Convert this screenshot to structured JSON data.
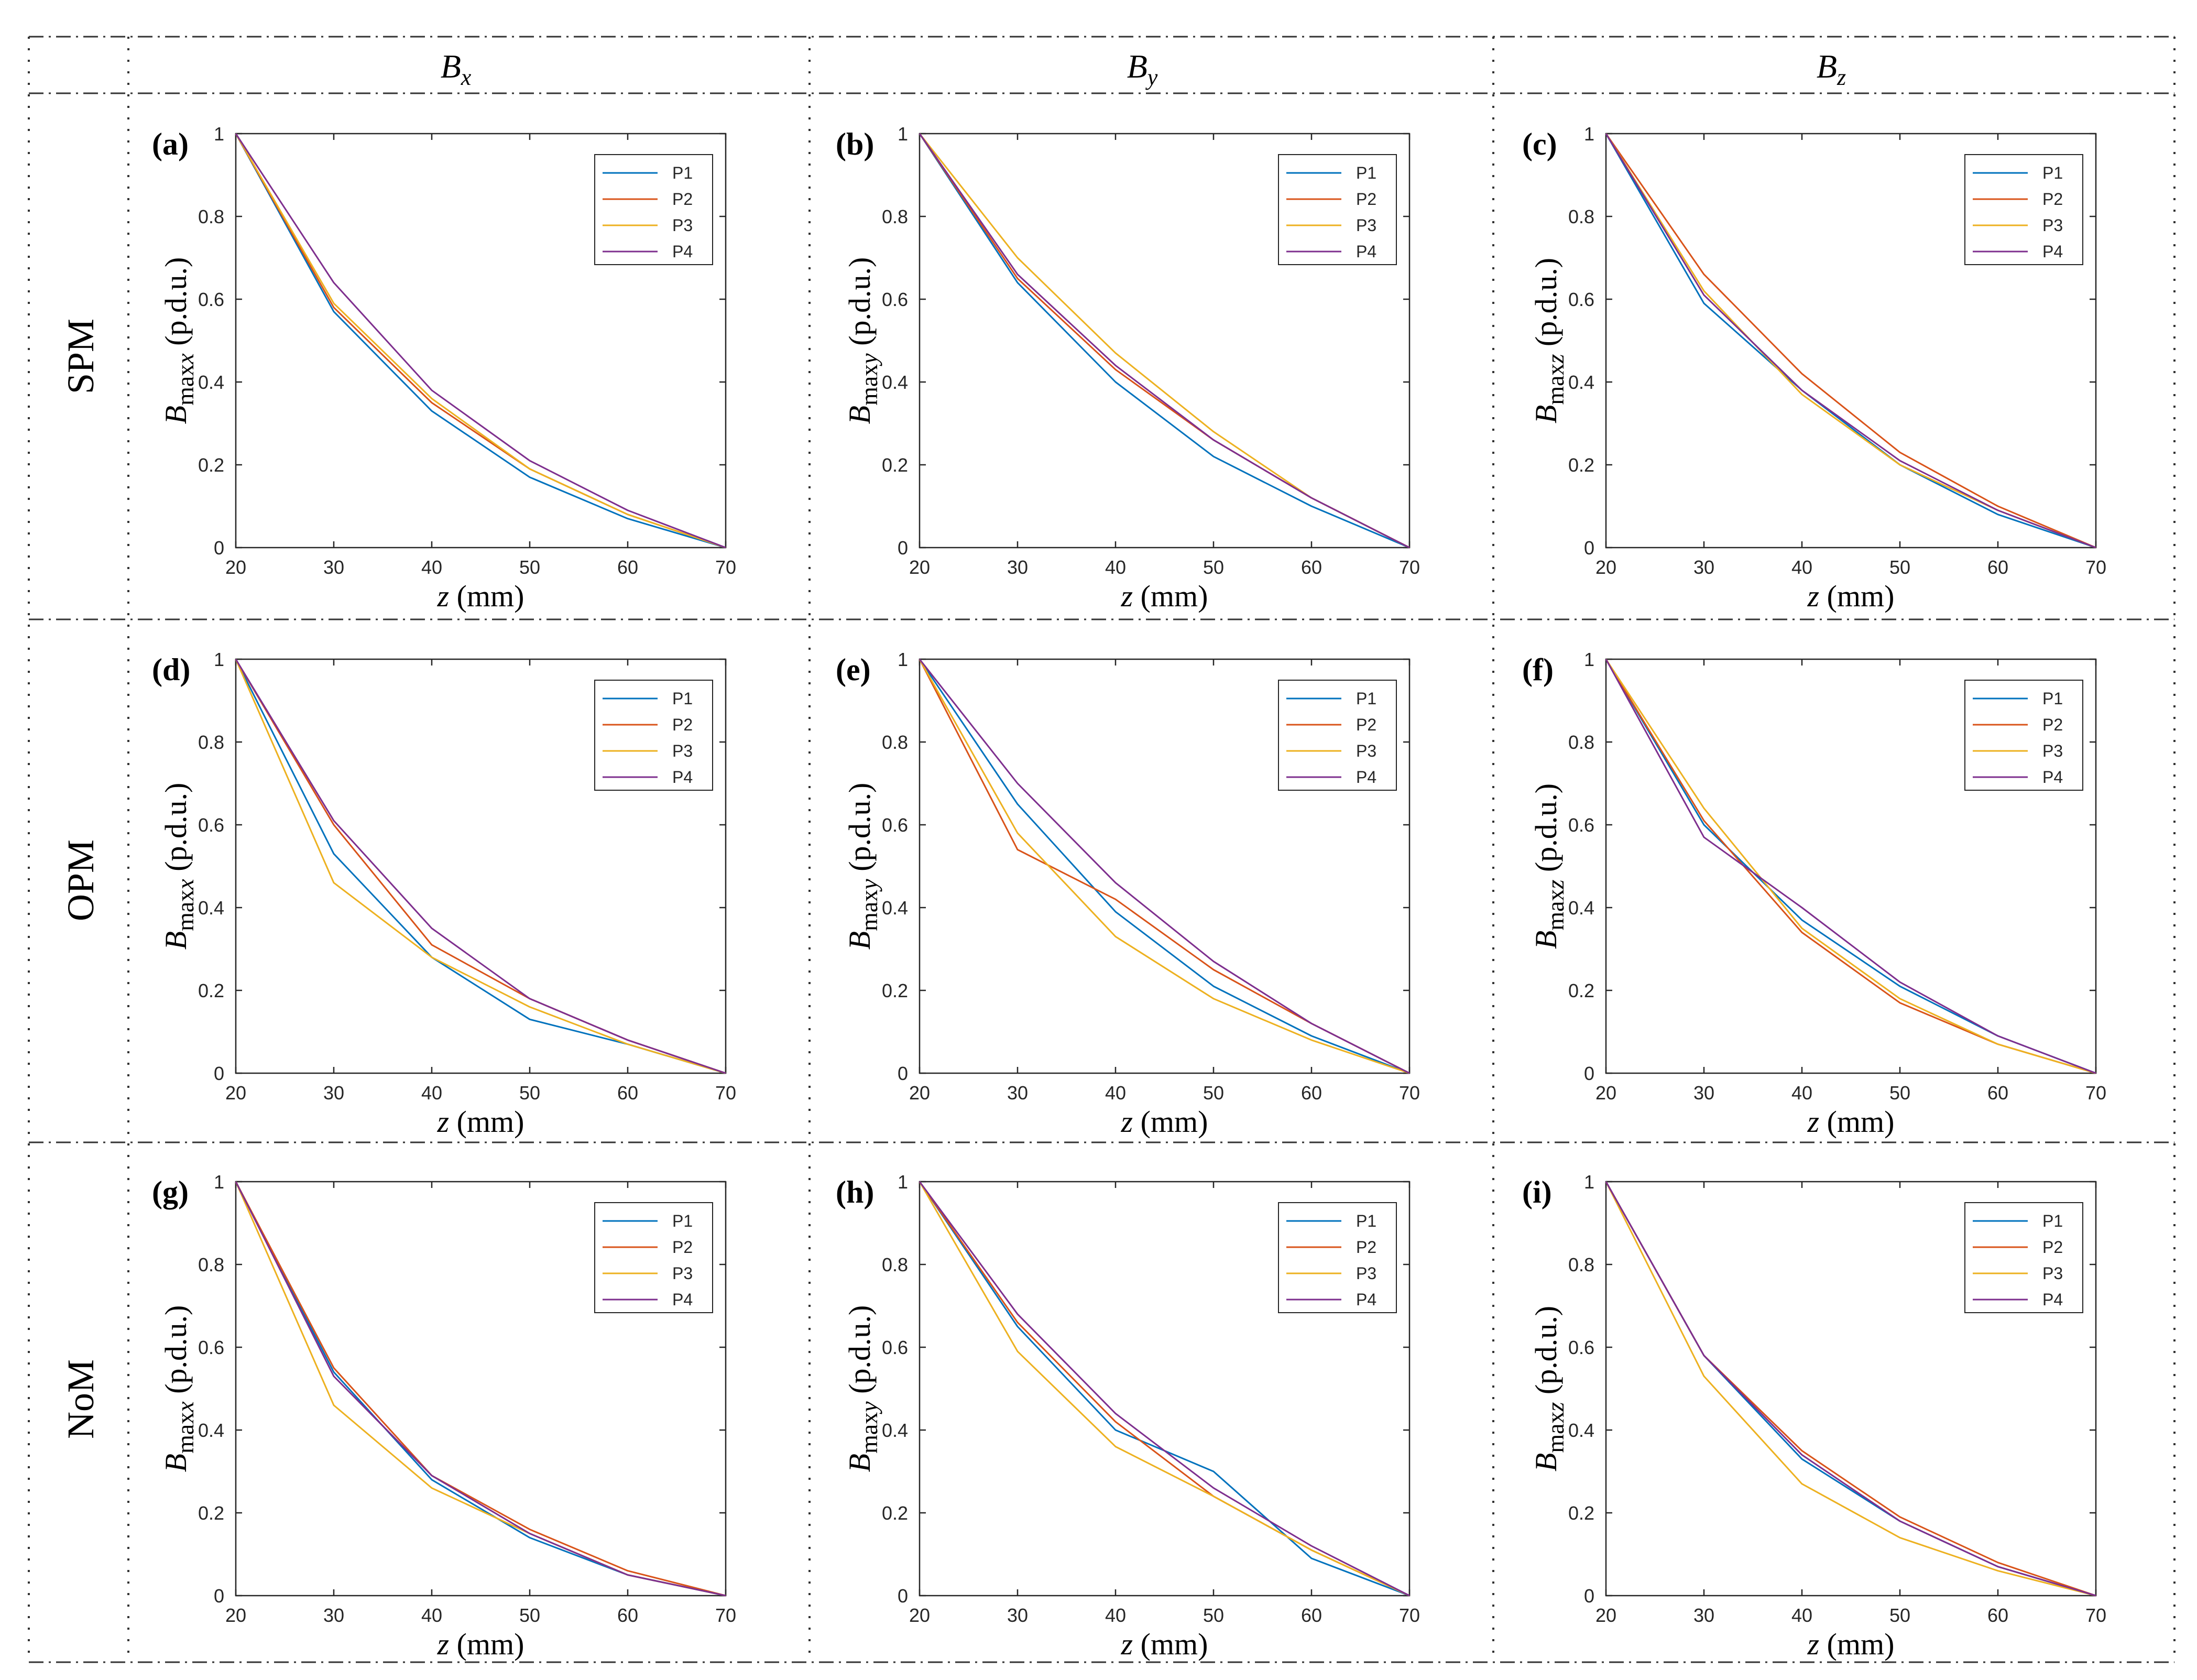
{
  "columns": [
    "B",
    "B",
    "B"
  ],
  "column_subscripts": [
    "x",
    "y",
    "z"
  ],
  "rows": [
    "SPM",
    "OPM",
    "NoM"
  ],
  "chart_data": [
    {
      "id": "a",
      "panel_label": "(a)",
      "type": "line",
      "xlabel_var": "z",
      "xlabel_unit": "(mm)",
      "ylabel_main": "B",
      "ylabel_sub": "max",
      "ylabel_comp": "x",
      "ylabel_unit": "(p.d.u.)",
      "x": [
        20,
        30,
        40,
        50,
        60,
        70
      ],
      "xlim": [
        20,
        70
      ],
      "ylim": [
        0,
        1
      ],
      "xticks": [
        "20",
        "30",
        "40",
        "50",
        "60",
        "70"
      ],
      "yticks": [
        "0",
        "0.2",
        "0.4",
        "0.6",
        "0.8",
        "1"
      ],
      "series": [
        {
          "name": "P1",
          "color": "#0072BD",
          "values": [
            1,
            0.57,
            0.33,
            0.17,
            0.07,
            0
          ]
        },
        {
          "name": "P2",
          "color": "#D95319",
          "values": [
            1,
            0.58,
            0.35,
            0.19,
            0.08,
            0
          ]
        },
        {
          "name": "P3",
          "color": "#EDB120",
          "values": [
            1,
            0.59,
            0.36,
            0.19,
            0.08,
            0
          ]
        },
        {
          "name": "P4",
          "color": "#7E2F8E",
          "values": [
            1,
            0.64,
            0.38,
            0.21,
            0.09,
            0
          ]
        }
      ]
    },
    {
      "id": "b",
      "panel_label": "(b)",
      "type": "line",
      "xlabel_var": "z",
      "xlabel_unit": "(mm)",
      "ylabel_main": "B",
      "ylabel_sub": "max",
      "ylabel_comp": "y",
      "ylabel_unit": "(p.d.u.)",
      "x": [
        20,
        30,
        40,
        50,
        60,
        70
      ],
      "xlim": [
        20,
        70
      ],
      "ylim": [
        0,
        1
      ],
      "xticks": [
        "20",
        "30",
        "40",
        "50",
        "60",
        "70"
      ],
      "yticks": [
        "0",
        "0.2",
        "0.4",
        "0.6",
        "0.8",
        "1"
      ],
      "series": [
        {
          "name": "P1",
          "color": "#0072BD",
          "values": [
            1,
            0.64,
            0.4,
            0.22,
            0.1,
            0
          ]
        },
        {
          "name": "P2",
          "color": "#D95319",
          "values": [
            1,
            0.65,
            0.43,
            0.26,
            0.12,
            0
          ]
        },
        {
          "name": "P3",
          "color": "#EDB120",
          "values": [
            1,
            0.7,
            0.47,
            0.28,
            0.12,
            0
          ]
        },
        {
          "name": "P4",
          "color": "#7E2F8E",
          "values": [
            1,
            0.66,
            0.44,
            0.26,
            0.12,
            0
          ]
        }
      ]
    },
    {
      "id": "c",
      "panel_label": "(c)",
      "type": "line",
      "xlabel_var": "z",
      "xlabel_unit": "(mm)",
      "ylabel_main": "B",
      "ylabel_sub": "max",
      "ylabel_comp": "z",
      "ylabel_unit": "(p.d.u.)",
      "x": [
        20,
        30,
        40,
        50,
        60,
        70
      ],
      "xlim": [
        20,
        70
      ],
      "ylim": [
        0,
        1
      ],
      "xticks": [
        "20",
        "30",
        "40",
        "50",
        "60",
        "70"
      ],
      "yticks": [
        "0",
        "0.2",
        "0.4",
        "0.6",
        "0.8",
        "1"
      ],
      "series": [
        {
          "name": "P1",
          "color": "#0072BD",
          "values": [
            1,
            0.59,
            0.38,
            0.2,
            0.08,
            0
          ]
        },
        {
          "name": "P2",
          "color": "#D95319",
          "values": [
            1,
            0.66,
            0.42,
            0.23,
            0.1,
            0
          ]
        },
        {
          "name": "P3",
          "color": "#EDB120",
          "values": [
            1,
            0.62,
            0.37,
            0.2,
            0.09,
            0
          ]
        },
        {
          "name": "P4",
          "color": "#7E2F8E",
          "values": [
            1,
            0.61,
            0.38,
            0.21,
            0.09,
            0
          ]
        }
      ]
    },
    {
      "id": "d",
      "panel_label": "(d)",
      "type": "line",
      "xlabel_var": "z",
      "xlabel_unit": "(mm)",
      "ylabel_main": "B",
      "ylabel_sub": "max",
      "ylabel_comp": "x",
      "ylabel_unit": "(p.d.u.)",
      "x": [
        20,
        30,
        40,
        50,
        60,
        70
      ],
      "xlim": [
        20,
        70
      ],
      "ylim": [
        0,
        1
      ],
      "xticks": [
        "20",
        "30",
        "40",
        "50",
        "60",
        "70"
      ],
      "yticks": [
        "0",
        "0.2",
        "0.4",
        "0.6",
        "0.8",
        "1"
      ],
      "series": [
        {
          "name": "P1",
          "color": "#0072BD",
          "values": [
            1,
            0.53,
            0.28,
            0.13,
            0.07,
            0
          ]
        },
        {
          "name": "P2",
          "color": "#D95319",
          "values": [
            1,
            0.6,
            0.31,
            0.18,
            0.08,
            0
          ]
        },
        {
          "name": "P3",
          "color": "#EDB120",
          "values": [
            1,
            0.46,
            0.28,
            0.16,
            0.07,
            0
          ]
        },
        {
          "name": "P4",
          "color": "#7E2F8E",
          "values": [
            1,
            0.61,
            0.35,
            0.18,
            0.08,
            0
          ]
        }
      ]
    },
    {
      "id": "e",
      "panel_label": "(e)",
      "type": "line",
      "xlabel_var": "z",
      "xlabel_unit": "(mm)",
      "ylabel_main": "B",
      "ylabel_sub": "max",
      "ylabel_comp": "y",
      "ylabel_unit": "(p.d.u.)",
      "x": [
        20,
        30,
        40,
        50,
        60,
        70
      ],
      "xlim": [
        20,
        70
      ],
      "ylim": [
        0,
        1
      ],
      "xticks": [
        "20",
        "30",
        "40",
        "50",
        "60",
        "70"
      ],
      "yticks": [
        "0",
        "0.2",
        "0.4",
        "0.6",
        "0.8",
        "1"
      ],
      "series": [
        {
          "name": "P1",
          "color": "#0072BD",
          "values": [
            1,
            0.65,
            0.39,
            0.21,
            0.09,
            0
          ]
        },
        {
          "name": "P2",
          "color": "#D95319",
          "values": [
            1,
            0.54,
            0.42,
            0.25,
            0.12,
            0
          ]
        },
        {
          "name": "P3",
          "color": "#EDB120",
          "values": [
            1,
            0.58,
            0.33,
            0.18,
            0.08,
            0
          ]
        },
        {
          "name": "P4",
          "color": "#7E2F8E",
          "values": [
            1,
            0.7,
            0.46,
            0.27,
            0.12,
            0
          ]
        }
      ]
    },
    {
      "id": "f",
      "panel_label": "(f)",
      "type": "line",
      "xlabel_var": "z",
      "xlabel_unit": "(mm)",
      "ylabel_main": "B",
      "ylabel_sub": "max",
      "ylabel_comp": "z",
      "ylabel_unit": "(p.d.u.)",
      "x": [
        20,
        30,
        40,
        50,
        60,
        70
      ],
      "xlim": [
        20,
        70
      ],
      "ylim": [
        0,
        1
      ],
      "xticks": [
        "20",
        "30",
        "40",
        "50",
        "60",
        "70"
      ],
      "yticks": [
        "0",
        "0.2",
        "0.4",
        "0.6",
        "0.8",
        "1"
      ],
      "series": [
        {
          "name": "P1",
          "color": "#0072BD",
          "values": [
            1,
            0.6,
            0.37,
            0.21,
            0.09,
            0
          ]
        },
        {
          "name": "P2",
          "color": "#D95319",
          "values": [
            1,
            0.61,
            0.34,
            0.17,
            0.07,
            0
          ]
        },
        {
          "name": "P3",
          "color": "#EDB120",
          "values": [
            1,
            0.64,
            0.35,
            0.18,
            0.07,
            0
          ]
        },
        {
          "name": "P4",
          "color": "#7E2F8E",
          "values": [
            1,
            0.57,
            0.4,
            0.22,
            0.09,
            0
          ]
        }
      ]
    },
    {
      "id": "g",
      "panel_label": "(g)",
      "type": "line",
      "xlabel_var": "z",
      "xlabel_unit": "(mm)",
      "ylabel_main": "B",
      "ylabel_sub": "max",
      "ylabel_comp": "x",
      "ylabel_unit": "(p.d.u.)",
      "x": [
        20,
        30,
        40,
        50,
        60,
        70
      ],
      "xlim": [
        20,
        70
      ],
      "ylim": [
        0,
        1
      ],
      "xticks": [
        "20",
        "30",
        "40",
        "50",
        "60",
        "70"
      ],
      "yticks": [
        "0",
        "0.2",
        "0.4",
        "0.6",
        "0.8",
        "1"
      ],
      "series": [
        {
          "name": "P1",
          "color": "#0072BD",
          "values": [
            1,
            0.54,
            0.28,
            0.14,
            0.05,
            0
          ]
        },
        {
          "name": "P2",
          "color": "#D95319",
          "values": [
            1,
            0.55,
            0.29,
            0.16,
            0.06,
            0
          ]
        },
        {
          "name": "P3",
          "color": "#EDB120",
          "values": [
            1,
            0.46,
            0.26,
            0.15,
            0.05,
            0
          ]
        },
        {
          "name": "P4",
          "color": "#7E2F8E",
          "values": [
            1,
            0.53,
            0.29,
            0.15,
            0.05,
            0
          ]
        }
      ]
    },
    {
      "id": "h",
      "panel_label": "(h)",
      "type": "line",
      "xlabel_var": "z",
      "xlabel_unit": "(mm)",
      "ylabel_main": "B",
      "ylabel_sub": "max",
      "ylabel_comp": "y",
      "ylabel_unit": "(p.d.u.)",
      "x": [
        20,
        30,
        40,
        50,
        60,
        70
      ],
      "xlim": [
        20,
        70
      ],
      "ylim": [
        0,
        1
      ],
      "xticks": [
        "20",
        "30",
        "40",
        "50",
        "60",
        "70"
      ],
      "yticks": [
        "0",
        "0.2",
        "0.4",
        "0.6",
        "0.8",
        "1"
      ],
      "series": [
        {
          "name": "P1",
          "color": "#0072BD",
          "values": [
            1,
            0.65,
            0.4,
            0.3,
            0.09,
            0
          ]
        },
        {
          "name": "P2",
          "color": "#D95319",
          "values": [
            1,
            0.66,
            0.42,
            0.24,
            0.11,
            0
          ]
        },
        {
          "name": "P3",
          "color": "#EDB120",
          "values": [
            1,
            0.59,
            0.36,
            0.24,
            0.11,
            0
          ]
        },
        {
          "name": "P4",
          "color": "#7E2F8E",
          "values": [
            1,
            0.68,
            0.44,
            0.26,
            0.12,
            0
          ]
        }
      ]
    },
    {
      "id": "i",
      "panel_label": "(i)",
      "type": "line",
      "xlabel_var": "z",
      "xlabel_unit": "(mm)",
      "ylabel_main": "B",
      "ylabel_sub": "max",
      "ylabel_comp": "z",
      "ylabel_unit": "(p.d.u.)",
      "x": [
        20,
        30,
        40,
        50,
        60,
        70
      ],
      "xlim": [
        20,
        70
      ],
      "ylim": [
        0,
        1
      ],
      "xticks": [
        "20",
        "30",
        "40",
        "50",
        "60",
        "70"
      ],
      "yticks": [
        "0",
        "0.2",
        "0.4",
        "0.6",
        "0.8",
        "1"
      ],
      "series": [
        {
          "name": "P1",
          "color": "#0072BD",
          "values": [
            1,
            0.58,
            0.33,
            0.18,
            0.07,
            0
          ]
        },
        {
          "name": "P2",
          "color": "#D95319",
          "values": [
            1,
            0.58,
            0.35,
            0.19,
            0.08,
            0
          ]
        },
        {
          "name": "P3",
          "color": "#EDB120",
          "values": [
            1,
            0.53,
            0.27,
            0.14,
            0.06,
            0
          ]
        },
        {
          "name": "P4",
          "color": "#7E2F8E",
          "values": [
            1,
            0.58,
            0.34,
            0.18,
            0.07,
            0
          ]
        }
      ]
    }
  ]
}
